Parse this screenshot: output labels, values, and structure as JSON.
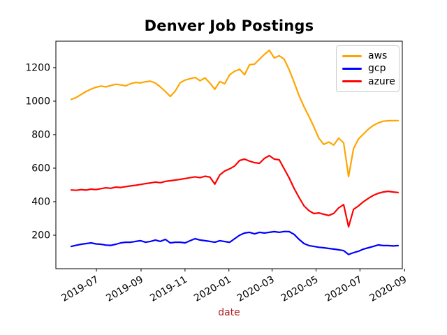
{
  "chart_data": {
    "type": "line",
    "title": "Denver Job Postings",
    "xlabel": "date",
    "xlabel_color": "#B22222",
    "ylabel": "",
    "grid": false,
    "legend_position": "upper right",
    "background": "#ffffff",
    "axis_color": "#000000",
    "x_tick_labels": [
      "2019-07",
      "2019-09",
      "2019-11",
      "2020-01",
      "2020-03",
      "2020-05",
      "2020-07",
      "2020-09"
    ],
    "y_ticks": [
      200,
      400,
      600,
      800,
      1000,
      1200
    ],
    "ylim": [
      0,
      1358
    ],
    "x_range": [
      "2019-05-27",
      "2020-08-23"
    ],
    "x_interval": "weekly",
    "n_points": 67,
    "series": [
      {
        "name": "aws",
        "color": "#FFA500",
        "values": [
          1010,
          1022,
          1040,
          1058,
          1072,
          1083,
          1090,
          1085,
          1093,
          1101,
          1097,
          1092,
          1104,
          1112,
          1109,
          1116,
          1119,
          1108,
          1085,
          1058,
          1028,
          1060,
          1110,
          1126,
          1134,
          1142,
          1122,
          1139,
          1108,
          1071,
          1117,
          1104,
          1158,
          1179,
          1190,
          1158,
          1217,
          1221,
          1250,
          1279,
          1304,
          1258,
          1271,
          1250,
          1188,
          1113,
          1033,
          967,
          908,
          846,
          779,
          742,
          756,
          738,
          779,
          752,
          550,
          717,
          775,
          804,
          833,
          855,
          870,
          880,
          883,
          884,
          884
        ]
      },
      {
        "name": "gcp",
        "color": "#0000FF",
        "values": [
          133,
          140,
          146,
          150,
          154,
          148,
          146,
          141,
          139,
          146,
          154,
          158,
          158,
          163,
          167,
          158,
          163,
          171,
          163,
          175,
          154,
          158,
          158,
          154,
          167,
          179,
          171,
          167,
          163,
          158,
          167,
          162,
          158,
          179,
          200,
          213,
          217,
          208,
          217,
          213,
          217,
          221,
          217,
          222,
          221,
          205,
          175,
          150,
          138,
          133,
          128,
          125,
          121,
          117,
          113,
          108,
          85,
          96,
          104,
          117,
          125,
          133,
          142,
          138,
          138,
          136,
          138
        ]
      },
      {
        "name": "azure",
        "color": "#FF0000",
        "values": [
          470,
          468,
          472,
          469,
          475,
          472,
          478,
          483,
          480,
          487,
          485,
          490,
          494,
          498,
          503,
          508,
          512,
          517,
          513,
          521,
          525,
          529,
          533,
          538,
          543,
          548,
          543,
          552,
          547,
          505,
          560,
          583,
          596,
          613,
          646,
          654,
          642,
          633,
          629,
          658,
          675,
          654,
          650,
          596,
          542,
          479,
          425,
          375,
          346,
          329,
          333,
          325,
          318,
          330,
          363,
          383,
          250,
          354,
          375,
          400,
          420,
          438,
          450,
          458,
          462,
          458,
          455
        ]
      }
    ]
  }
}
